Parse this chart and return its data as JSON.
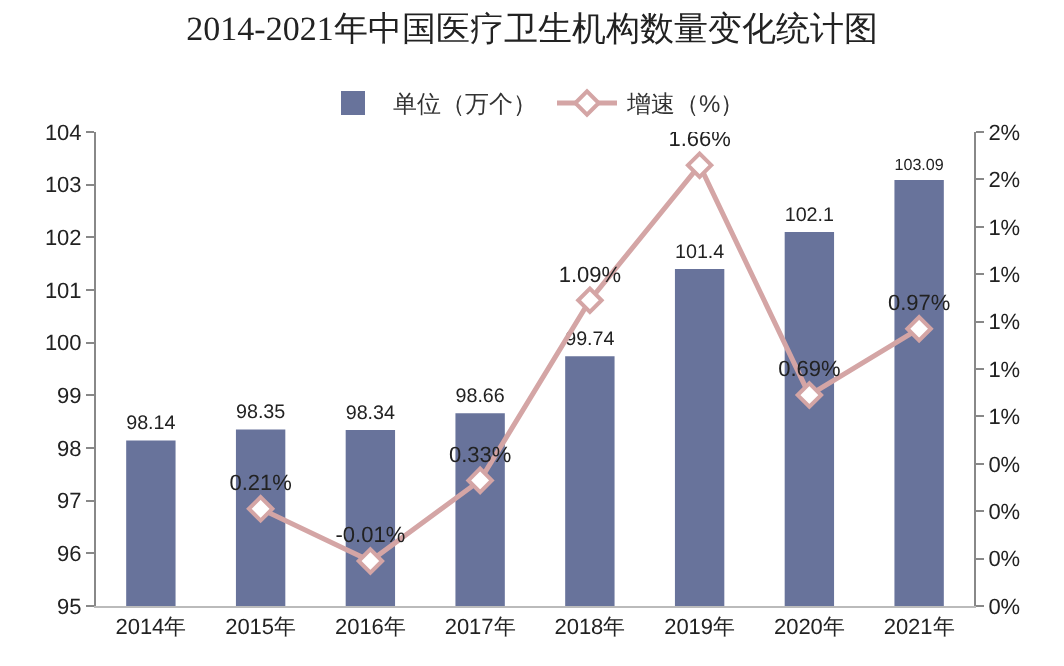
{
  "chart_data": {
    "type": "bar",
    "title": "2014-2021年中国医疗卫生机构数量变化统计图",
    "categories": [
      "2014年",
      "2015年",
      "2016年",
      "2017年",
      "2018年",
      "2019年",
      "2020年",
      "2021年"
    ],
    "series": [
      {
        "name": "单位（万个）",
        "color": "#68739b",
        "values": [
          98.14,
          98.35,
          98.34,
          98.66,
          99.74,
          101.4,
          102.1,
          103.09
        ],
        "value_labels": [
          "98.14",
          "98.35",
          "98.34",
          "98.66",
          "99.74",
          "101.4",
          "102.1",
          "103.09"
        ]
      },
      {
        "name": "增速（%）",
        "type": "line",
        "axis": "y2",
        "color": "#d4a5a5",
        "values": [
          null,
          0.21,
          -0.01,
          0.33,
          1.09,
          1.66,
          0.69,
          0.97
        ],
        "value_labels": [
          null,
          "0.21%",
          "-0.01%",
          "0.33%",
          "1.09%",
          "1.66%",
          "0.69%",
          "0.97%"
        ]
      }
    ],
    "ylim": [
      95,
      104
    ],
    "yticks": [
      95,
      96,
      97,
      98,
      99,
      100,
      101,
      102,
      103,
      104
    ],
    "y2lim": [
      -0.2,
      1.8
    ],
    "y2ticks": [
      {
        "value": -0.2,
        "label": "0%"
      },
      {
        "value": 0,
        "label": "0%"
      },
      {
        "value": 0.2,
        "label": "0%"
      },
      {
        "value": 0.4,
        "label": "0%"
      },
      {
        "value": 0.6,
        "label": "1%"
      },
      {
        "value": 0.8,
        "label": "1%"
      },
      {
        "value": 1,
        "label": "1%"
      },
      {
        "value": 1.2,
        "label": "1%"
      },
      {
        "value": 1.4,
        "label": "1%"
      },
      {
        "value": 1.6,
        "label": "2%"
      },
      {
        "value": 1.8,
        "label": "2%"
      }
    ],
    "marker": "diamond",
    "line_style": "solid",
    "legend": "top",
    "grid": false
  }
}
